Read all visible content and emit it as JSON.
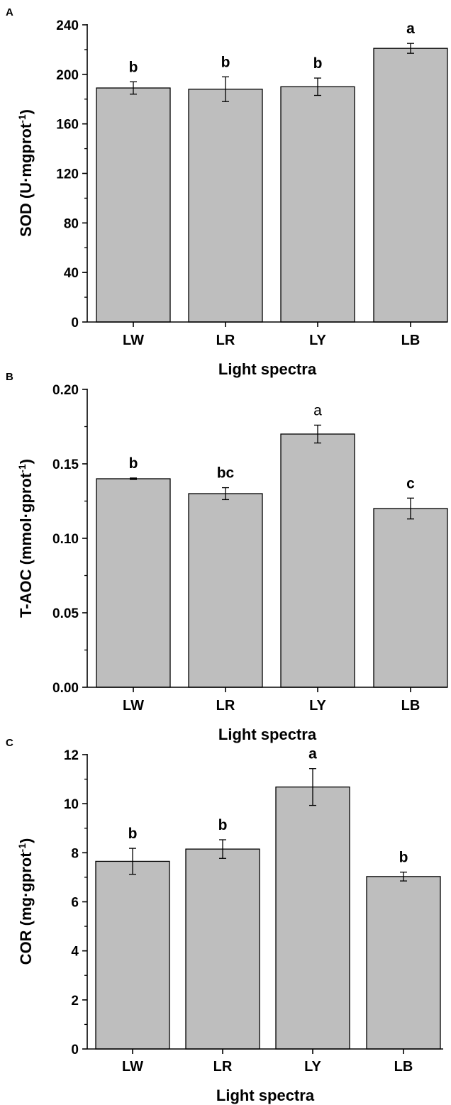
{
  "chart_data": [
    {
      "panel": "A",
      "type": "bar",
      "categories": [
        "LW",
        "LR",
        "LY",
        "LB"
      ],
      "values": [
        189,
        188,
        190,
        221
      ],
      "errors": [
        5,
        10,
        7,
        4
      ],
      "significance": [
        "b",
        "b",
        "b",
        "a"
      ],
      "ylabel_main": "SOD (U·mgprot",
      "ylabel_sup": "-1",
      "ylabel_end": ")",
      "xlabel": "Light spectra",
      "ylim": [
        0,
        240
      ],
      "yticks": [
        "0",
        "40",
        "80",
        "120",
        "160",
        "200",
        "240"
      ],
      "bar_color": "#bebebe"
    },
    {
      "panel": "B",
      "type": "bar",
      "categories": [
        "LW",
        "LR",
        "LY",
        "LB"
      ],
      "values": [
        0.14,
        0.13,
        0.17,
        0.12
      ],
      "errors": [
        0.0005,
        0.004,
        0.006,
        0.007
      ],
      "significance": [
        "b",
        "bc",
        "a",
        "c"
      ],
      "ylabel_main": "T-AOC (mmol·gprot",
      "ylabel_sup": "-1",
      "ylabel_end": ")",
      "xlabel": "Light spectra",
      "ylim": [
        0,
        0.2
      ],
      "yticks": [
        "0.00",
        "0.05",
        "0.10",
        "0.15",
        "0.20"
      ],
      "bar_color": "#bebebe"
    },
    {
      "panel": "C",
      "type": "bar",
      "categories": [
        "LW",
        "LR",
        "LY",
        "LB"
      ],
      "values": [
        7.65,
        8.15,
        10.68,
        7.03
      ],
      "errors": [
        0.53,
        0.38,
        0.75,
        0.18
      ],
      "significance": [
        "b",
        "b",
        "a",
        "b"
      ],
      "ylabel_main": "COR (mg·gprot",
      "ylabel_sup": "-1",
      "ylabel_end": ")",
      "xlabel": "Light spectra",
      "ylim": [
        0,
        12
      ],
      "yticks": [
        "0",
        "2",
        "4",
        "6",
        "8",
        "10",
        "12"
      ],
      "bar_color": "#bebebe"
    }
  ]
}
